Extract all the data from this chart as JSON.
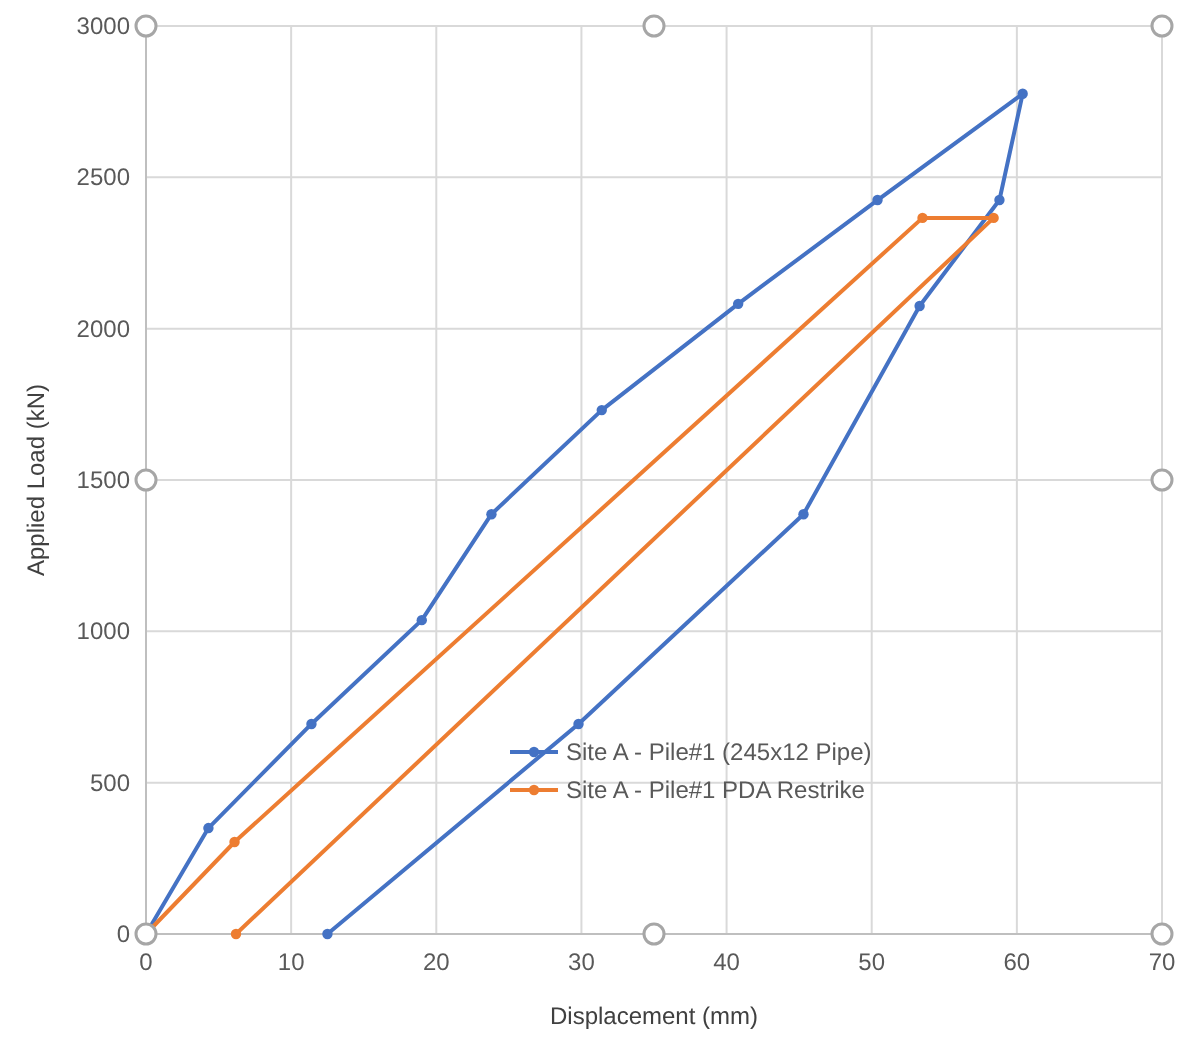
{
  "chart_data": {
    "type": "line",
    "xlabel": "Displacement (mm)",
    "ylabel": "Applied Load (kN)",
    "xlim": [
      0,
      70
    ],
    "xticks": [
      0,
      10,
      20,
      30,
      40,
      50,
      60,
      70
    ],
    "ylim": [
      0,
      3000
    ],
    "yticks": [
      0,
      500,
      1000,
      1500,
      2000,
      2500,
      3000
    ],
    "grid": true,
    "legend": "bottom",
    "marker": "circle",
    "line_style": "solid",
    "series": [
      {
        "name": "Site A - Pile#1 (245x12 Pipe)",
        "color": "#4472c4",
        "x": [
          0,
          4.3,
          11.4,
          19,
          23.8,
          31.4,
          40.8,
          50.4,
          60.4,
          58.8,
          53.3,
          45.3,
          29.8,
          12.5
        ],
        "values": [
          0,
          350,
          694,
          1037,
          1387,
          1731,
          2082,
          2425,
          2776,
          2425,
          2075,
          1387,
          694,
          0
        ]
      },
      {
        "name": "Site A - Pile#1 PDA Restrike",
        "color": "#ed7d31",
        "x": [
          0,
          6.1,
          53.5,
          58.4,
          6.2
        ],
        "values": [
          0,
          304,
          2366,
          2366,
          0
        ]
      }
    ]
  }
}
